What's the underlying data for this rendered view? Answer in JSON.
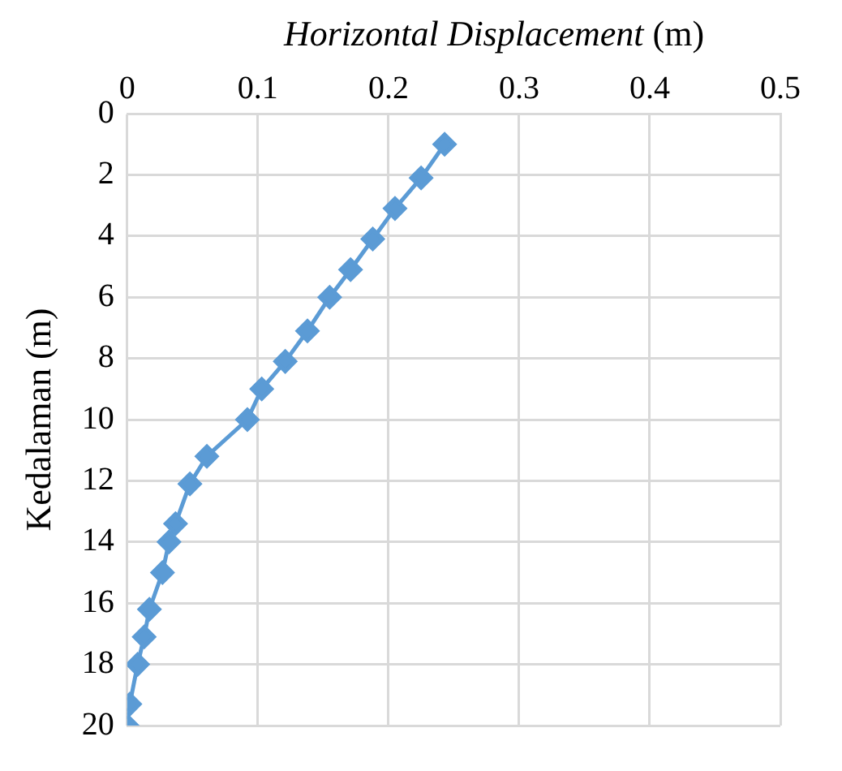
{
  "chart_data": {
    "type": "line",
    "xlabel": "Horizontal Displacement (m)",
    "ylabel": "Kedalaman (m)",
    "series": [
      {
        "color": "#5b9bd5",
        "x": [
          0.243,
          0.225,
          0.205,
          0.188,
          0.171,
          0.155,
          0.138,
          0.121,
          0.103,
          0.092,
          0.061,
          0.048,
          0.037,
          0.032,
          0.027,
          0.017,
          0.013,
          0.008,
          0.002,
          0
        ],
        "values": [
          1,
          2.1,
          3.1,
          4.1,
          5.1,
          6,
          7.1,
          8.1,
          9,
          10,
          11.2,
          12.1,
          13.4,
          14,
          15,
          16.2,
          17.1,
          18,
          19.3,
          20
        ]
      }
    ],
    "xlim": [
      0,
      0.5
    ],
    "xticks": [
      0,
      0.1,
      0.2,
      0.3,
      0.4,
      0.5
    ],
    "ylim": [
      20,
      0
    ],
    "yticks": [
      0,
      2,
      4,
      6,
      8,
      10,
      12,
      14,
      16,
      18,
      20
    ],
    "grid": true,
    "marker": "diamond",
    "line_style": "solid",
    "legend": false
  }
}
